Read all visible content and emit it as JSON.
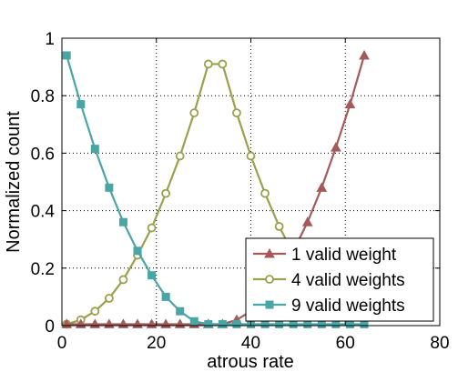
{
  "chart_data": {
    "type": "line",
    "title": "",
    "xlabel": "atrous rate",
    "ylabel": "Normalized count",
    "xlim": [
      0,
      80
    ],
    "ylim": [
      0,
      1
    ],
    "xticks": [
      "0",
      "20",
      "40",
      "60",
      "80"
    ],
    "yticks": [
      "0",
      "0.2",
      "0.4",
      "0.6",
      "0.8",
      "1"
    ],
    "grid": true,
    "legend_position": "bottom-right",
    "series": [
      {
        "name": "1 valid weight",
        "color": "#a45a5a",
        "marker": "triangle",
        "x": [
          1,
          4,
          7,
          10,
          13,
          16,
          19,
          22,
          25,
          28,
          31,
          34,
          37,
          40,
          43,
          46,
          49,
          52,
          55,
          58,
          61,
          64
        ],
        "y": [
          0.005,
          0.005,
          0.005,
          0.005,
          0.005,
          0.005,
          0.005,
          0.005,
          0.005,
          0.005,
          0.005,
          0.005,
          0.02,
          0.05,
          0.1,
          0.17,
          0.26,
          0.36,
          0.48,
          0.62,
          0.77,
          0.94
        ]
      },
      {
        "name": "4 valid weights",
        "color": "#9ba04d",
        "marker": "circle",
        "x": [
          1,
          4,
          7,
          10,
          13,
          16,
          19,
          22,
          25,
          28,
          31,
          34,
          37,
          40,
          43,
          46,
          49
        ],
        "y": [
          0.005,
          0.02,
          0.05,
          0.095,
          0.16,
          0.245,
          0.34,
          0.46,
          0.59,
          0.74,
          0.91,
          0.91,
          0.74,
          0.59,
          0.46,
          0.345,
          0.25
        ]
      },
      {
        "name": "9 valid weights",
        "color": "#4aa5a5",
        "marker": "square",
        "x": [
          1,
          4,
          7,
          10,
          13,
          16,
          19,
          22,
          25,
          28,
          31,
          34,
          37,
          40,
          43,
          46,
          49,
          52,
          55,
          58,
          61,
          64
        ],
        "y": [
          0.94,
          0.77,
          0.615,
          0.48,
          0.36,
          0.26,
          0.175,
          0.1,
          0.05,
          0.015,
          0.005,
          0.005,
          0.005,
          0.005,
          0.005,
          0.005,
          0.005,
          0.005,
          0.005,
          0.005,
          0.005,
          0.005
        ]
      }
    ]
  }
}
